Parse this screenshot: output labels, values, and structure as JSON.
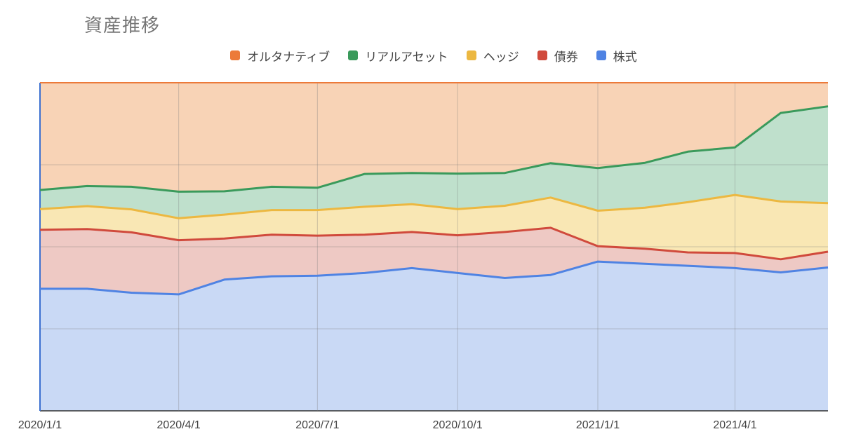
{
  "chart_data": {
    "type": "area",
    "stacked": true,
    "normalized": true,
    "title": "資産推移",
    "legend_position": "top",
    "grid": true,
    "ylim": [
      0,
      100
    ],
    "x_tick_labels": [
      "2020/1/1",
      "2020/4/1",
      "2020/7/1",
      "2020/10/1",
      "2021/1/1",
      "2021/4/1"
    ],
    "x": [
      "2020/1/1",
      "2020/2/1",
      "2020/3/1",
      "2020/4/1",
      "2020/5/1",
      "2020/6/1",
      "2020/7/1",
      "2020/8/1",
      "2020/9/1",
      "2020/10/1",
      "2020/11/1",
      "2020/12/1",
      "2021/1/1",
      "2021/2/1",
      "2021/3/1",
      "2021/4/1",
      "2021/5/1",
      "2021/6/1"
    ],
    "series": [
      {
        "name": "株式",
        "color": "#4f83e3",
        "fill": "#c9d9f5",
        "values": [
          37.2,
          37.2,
          36.0,
          35.5,
          40.0,
          41.0,
          41.2,
          42.0,
          43.5,
          42.0,
          40.5,
          41.4,
          45.5,
          44.8,
          44.2,
          43.5,
          42.2,
          43.7
        ]
      },
      {
        "name": "債券",
        "color": "#d04a3c",
        "fill": "#eec9c4",
        "values": [
          18.0,
          18.2,
          18.4,
          16.5,
          12.5,
          12.7,
          12.2,
          11.7,
          11.0,
          11.5,
          14.0,
          14.4,
          4.7,
          4.6,
          4.1,
          4.6,
          4.0,
          4.8
        ]
      },
      {
        "name": "ヘッジ",
        "color": "#ecb841",
        "fill": "#f9e7b4",
        "values": [
          6.3,
          7.0,
          7.0,
          6.7,
          7.3,
          7.5,
          7.8,
          8.5,
          8.5,
          8.0,
          8.0,
          9.2,
          10.8,
          12.5,
          15.3,
          17.7,
          17.6,
          14.8
        ]
      },
      {
        "name": "リアルアセット",
        "color": "#3a9a5b",
        "fill": "#bfe0cc",
        "values": [
          5.8,
          6.1,
          6.9,
          8.1,
          7.1,
          7.1,
          6.8,
          10.0,
          9.5,
          10.8,
          10.0,
          10.5,
          13.0,
          13.7,
          15.4,
          14.5,
          27.0,
          29.5
        ]
      },
      {
        "name": "オルタナティブ",
        "color": "#ec7a3a",
        "fill": "#f8d3b6",
        "values": [
          32.7,
          31.5,
          31.7,
          33.2,
          33.1,
          31.7,
          32.0,
          27.8,
          27.5,
          27.7,
          27.5,
          24.5,
          26.0,
          24.4,
          21.0,
          19.7,
          9.2,
          7.2
        ]
      }
    ]
  }
}
